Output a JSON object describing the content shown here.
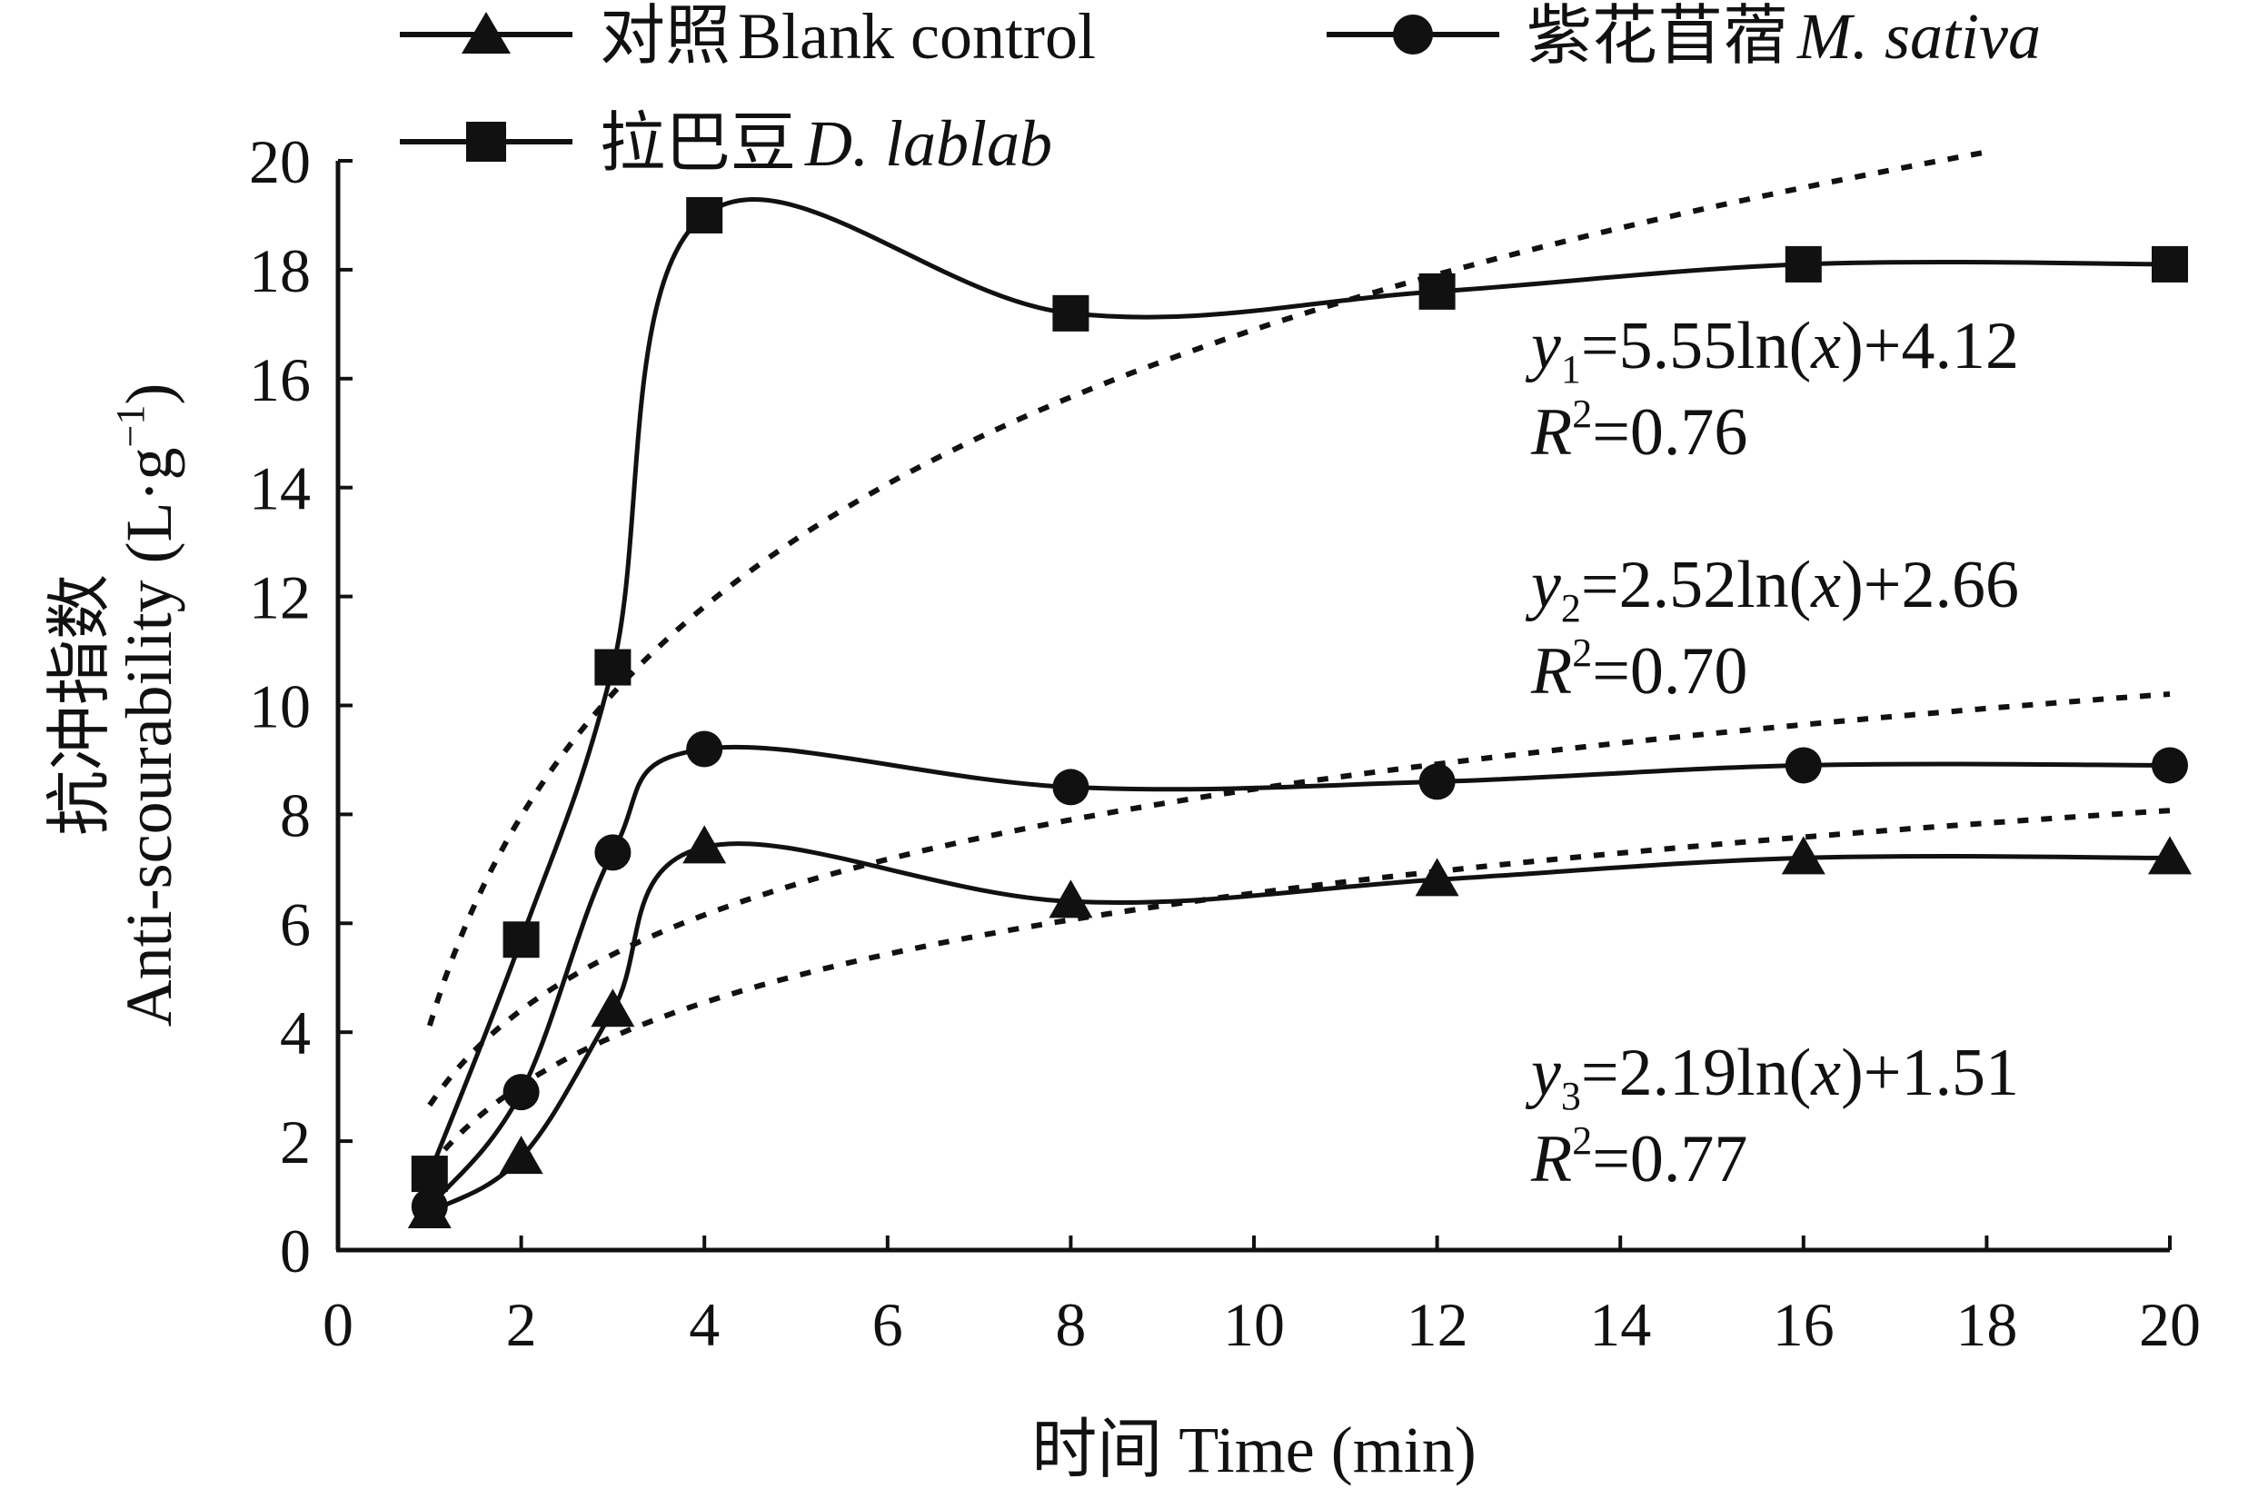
{
  "chart_data": {
    "type": "line",
    "title": "",
    "xlabel": "时间 Time (min)",
    "ylabel_zh": "抗冲指数",
    "ylabel_en": "Anti-scourability (L·g",
    "ylabel_sup": "−1",
    "ylabel_close": ")",
    "xlim": [
      0,
      20
    ],
    "ylim": [
      0,
      20
    ],
    "x_ticks": [
      0,
      2,
      4,
      6,
      8,
      10,
      12,
      14,
      16,
      18,
      20
    ],
    "y_ticks": [
      0,
      2,
      4,
      6,
      8,
      10,
      12,
      14,
      16,
      18,
      20
    ],
    "grid": false,
    "legend_position": "top",
    "x": [
      1,
      2,
      3,
      4,
      8,
      12,
      16,
      20
    ],
    "series": [
      {
        "name_zh": "对照",
        "name_en": "Blank control",
        "marker": "triangle",
        "values": [
          0.7,
          1.7,
          4.4,
          7.4,
          6.4,
          6.8,
          7.2,
          7.2
        ],
        "fit": {
          "a": 2.19,
          "b": 1.51,
          "x_max": 20
        }
      },
      {
        "name_zh": "紫花苜蓿",
        "name_en": "M. sativa",
        "marker": "circle",
        "values": [
          0.8,
          2.9,
          7.3,
          9.2,
          8.5,
          8.6,
          8.9,
          8.9
        ],
        "fit": {
          "a": 2.52,
          "b": 2.66,
          "x_max": 20
        }
      },
      {
        "name_zh": "拉巴豆",
        "name_en": "D. lablab",
        "marker": "square",
        "values": [
          1.4,
          5.7,
          10.7,
          19.0,
          17.2,
          17.6,
          18.1,
          18.1
        ],
        "fit": {
          "a": 5.55,
          "b": 4.12,
          "x_max": 18
        }
      }
    ],
    "annotations": [
      {
        "var": "y",
        "sub": "1",
        "rest": "=5.55ln(",
        "x": "x",
        "close": ")+4.12",
        "r_label": "R",
        "r_sup": "2",
        "r_value": "=0.76"
      },
      {
        "var": "y",
        "sub": "2",
        "rest": "=2.52ln(",
        "x": "x",
        "close": ")+2.66",
        "r_label": "R",
        "r_sup": "2",
        "r_value": "=0.70"
      },
      {
        "var": "y",
        "sub": "3",
        "rest": "=2.19ln(",
        "x": "x",
        "close": ")+1.51",
        "r_label": "R",
        "r_sup": "2",
        "r_value": "=0.77"
      }
    ],
    "colors": {
      "line": "#111111",
      "background": "#ffffff"
    }
  }
}
